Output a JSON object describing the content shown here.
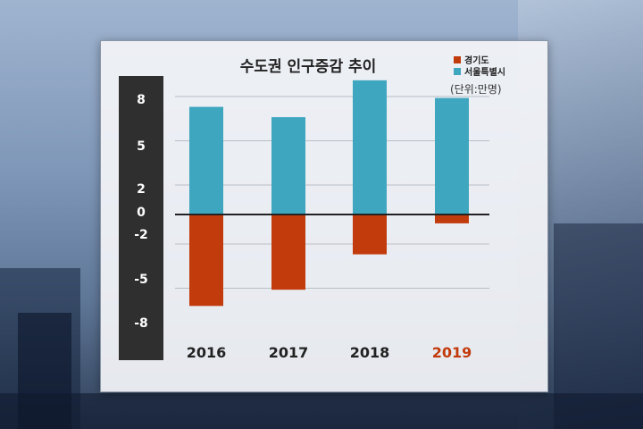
{
  "chart_data": {
    "type": "bar",
    "stacked": false,
    "title": "수도권 인구증감 추이",
    "unit": "(단위:만명)",
    "categories": [
      "2016",
      "2017",
      "2018",
      "2019"
    ],
    "highlight_category": "2019",
    "series": [
      {
        "name": "경기도",
        "color": "#c23b0c",
        "values": [
          -6.2,
          -5.1,
          -2.7,
          -0.6
        ]
      },
      {
        "name": "서울특별시",
        "color": "#3fa6bf",
        "values": [
          7.3,
          6.6,
          9.1,
          7.9
        ]
      }
    ],
    "yticks": [
      "8",
      "5",
      "2",
      "0",
      "-2",
      "-5",
      "-8"
    ],
    "ylim": [
      -8,
      8
    ],
    "grid": true,
    "legend_position": "top-right",
    "highlight_color": "#c23b0c"
  }
}
